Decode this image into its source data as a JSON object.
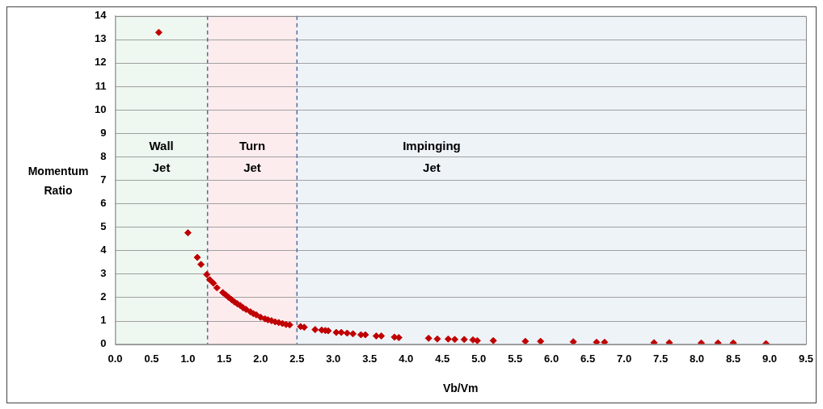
{
  "chart_data": {
    "type": "scatter",
    "xlabel": "Vb/Vm",
    "ylabel": "Momentum Ratio",
    "color": "#c00000",
    "marker": "diamond",
    "grid": "y",
    "xlim": [
      0,
      9.5
    ],
    "xticks": [
      {
        "value": 0,
        "label": "0.0"
      },
      {
        "value": 0.5,
        "label": "0.5"
      },
      {
        "value": 1,
        "label": "1.0"
      },
      {
        "value": 1.5,
        "label": "1.5"
      },
      {
        "value": 2,
        "label": "2.0"
      },
      {
        "value": 2.5,
        "label": "2.5"
      },
      {
        "value": 3,
        "label": "3.0"
      },
      {
        "value": 3.5,
        "label": "3.5"
      },
      {
        "value": 4,
        "label": "4.0"
      },
      {
        "value": 4.5,
        "label": "4.5"
      },
      {
        "value": 5,
        "label": "5.0"
      },
      {
        "value": 5.5,
        "label": "5.5"
      },
      {
        "value": 6,
        "label": "6.0"
      },
      {
        "value": 6.5,
        "label": "6.5"
      },
      {
        "value": 7,
        "label": "7.0"
      },
      {
        "value": 7.5,
        "label": "7.5"
      },
      {
        "value": 8,
        "label": "8.0"
      },
      {
        "value": 8.5,
        "label": "8.5"
      },
      {
        "value": 9,
        "label": "9.0"
      },
      {
        "value": 9.5,
        "label": "9.5"
      }
    ],
    "ylim": [
      0,
      14
    ],
    "yticks": [
      0,
      1,
      2,
      3,
      4,
      5,
      6,
      7,
      8,
      9,
      10,
      11,
      12,
      13,
      14
    ],
    "x": [
      0.6,
      1.0,
      1.13,
      1.18,
      1.26,
      1.3,
      1.35,
      1.4,
      1.48,
      1.52,
      1.56,
      1.6,
      1.64,
      1.68,
      1.72,
      1.76,
      1.8,
      1.86,
      1.9,
      1.94,
      2.0,
      2.06,
      2.1,
      2.15,
      2.2,
      2.25,
      2.3,
      2.35,
      2.4,
      2.55,
      2.6,
      2.75,
      2.84,
      2.89,
      2.93,
      3.04,
      3.11,
      3.19,
      3.27,
      3.38,
      3.44,
      3.59,
      3.66,
      3.84,
      3.9,
      4.31,
      4.43,
      4.58,
      4.67,
      4.8,
      4.92,
      4.98,
      5.2,
      5.64,
      5.85,
      6.3,
      6.62,
      6.73,
      7.41,
      7.62,
      8.06,
      8.29,
      8.5,
      8.95
    ],
    "values": [
      13.3,
      4.75,
      3.7,
      3.4,
      2.97,
      2.75,
      2.6,
      2.4,
      2.2,
      2.1,
      2.0,
      1.9,
      1.8,
      1.72,
      1.65,
      1.55,
      1.48,
      1.38,
      1.3,
      1.25,
      1.15,
      1.08,
      1.04,
      1.0,
      0.95,
      0.92,
      0.88,
      0.84,
      0.82,
      0.75,
      0.72,
      0.62,
      0.6,
      0.58,
      0.57,
      0.5,
      0.5,
      0.47,
      0.44,
      0.4,
      0.4,
      0.35,
      0.35,
      0.3,
      0.28,
      0.25,
      0.22,
      0.22,
      0.2,
      0.2,
      0.18,
      0.15,
      0.15,
      0.12,
      0.12,
      0.1,
      0.08,
      0.08,
      0.06,
      0.06,
      0.05,
      0.05,
      0.05,
      0.02
    ],
    "bands": [
      {
        "axis": "x",
        "from": 0,
        "to": 1.27,
        "label": "Wall Jet",
        "color": "#eef7f0"
      },
      {
        "axis": "x",
        "from": 1.27,
        "to": 2.5,
        "label": "Turn Jet",
        "color": "#fdecee"
      },
      {
        "axis": "x",
        "from": 2.5,
        "to": 9.5,
        "label": "Impinging Jet",
        "color": "#eef3f8"
      }
    ],
    "ref_lines": [
      {
        "axis": "x",
        "value": 1.27,
        "color": "#4f6f9f",
        "line_style": "dashed"
      },
      {
        "axis": "x",
        "value": 2.5,
        "color": "#4f6f9f",
        "line_style": "dashed"
      }
    ]
  }
}
